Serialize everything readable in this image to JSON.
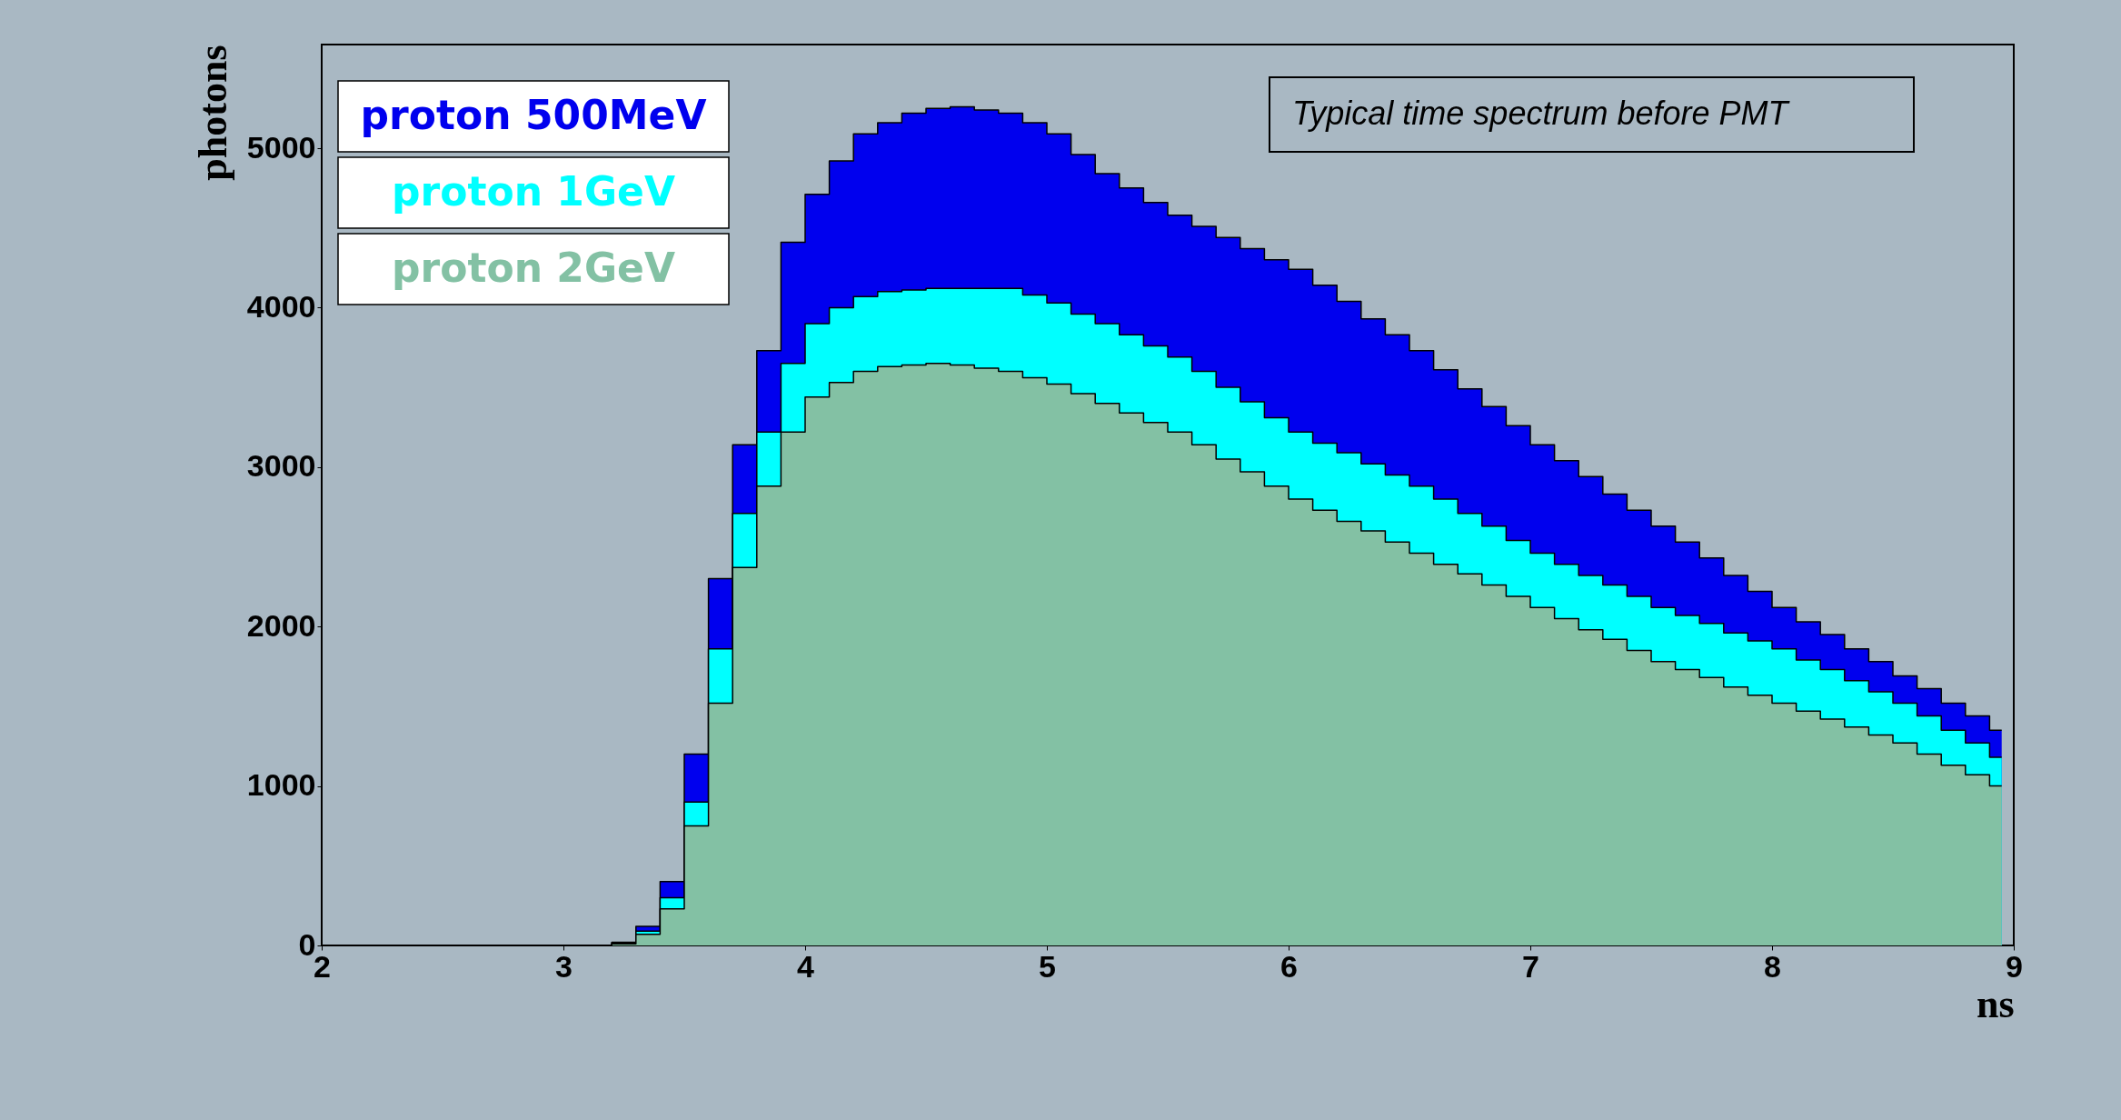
{
  "chart_data": {
    "type": "area",
    "title": null,
    "xlabel": "ns",
    "ylabel": "photons",
    "annotations": [
      "Typical time spectrum before PMT"
    ],
    "x": [
      2.05,
      2.15,
      2.25,
      2.35,
      2.45,
      2.55,
      2.65,
      2.75,
      2.85,
      2.95,
      3.05,
      3.15,
      3.25,
      3.35,
      3.45,
      3.55,
      3.65,
      3.75,
      3.85,
      3.95,
      4.05,
      4.15,
      4.25,
      4.35,
      4.45,
      4.55,
      4.65,
      4.75,
      4.85,
      4.95,
      5.05,
      5.15,
      5.25,
      5.35,
      5.45,
      5.55,
      5.65,
      5.75,
      5.85,
      5.95,
      6.05,
      6.15,
      6.25,
      6.35,
      6.45,
      6.55,
      6.65,
      6.75,
      6.85,
      6.95,
      7.05,
      7.15,
      7.25,
      7.35,
      7.45,
      7.55,
      7.65,
      7.75,
      7.85,
      7.95,
      8.05,
      8.15,
      8.25,
      8.35,
      8.45,
      8.55,
      8.65,
      8.75,
      8.85,
      8.95
    ],
    "series": [
      {
        "name": "proton 500MeV",
        "color": "#0000ee",
        "values": [
          0,
          0,
          0,
          0,
          0,
          0,
          0,
          0,
          0,
          0,
          0,
          0,
          20,
          120,
          400,
          1200,
          2300,
          3140,
          3730,
          4410,
          4710,
          4920,
          5090,
          5160,
          5220,
          5250,
          5260,
          5240,
          5220,
          5160,
          5090,
          4960,
          4840,
          4750,
          4660,
          4580,
          4510,
          4440,
          4370,
          4300,
          4240,
          4140,
          4040,
          3930,
          3830,
          3730,
          3610,
          3490,
          3380,
          3260,
          3140,
          3040,
          2940,
          2830,
          2730,
          2630,
          2530,
          2430,
          2320,
          2220,
          2120,
          2030,
          1950,
          1860,
          1780,
          1690,
          1610,
          1520,
          1440,
          1350
        ]
      },
      {
        "name": "proton 1GeV",
        "color": "#00ffff",
        "values": [
          0,
          0,
          0,
          0,
          0,
          0,
          0,
          0,
          0,
          0,
          0,
          0,
          15,
          90,
          300,
          900,
          1860,
          2710,
          3220,
          3650,
          3900,
          4000,
          4070,
          4100,
          4110,
          4120,
          4120,
          4120,
          4120,
          4080,
          4030,
          3960,
          3900,
          3830,
          3760,
          3690,
          3600,
          3500,
          3410,
          3310,
          3220,
          3150,
          3090,
          3020,
          2950,
          2880,
          2800,
          2710,
          2630,
          2540,
          2460,
          2390,
          2320,
          2260,
          2190,
          2120,
          2070,
          2020,
          1960,
          1910,
          1860,
          1790,
          1730,
          1660,
          1590,
          1520,
          1440,
          1350,
          1270,
          1180
        ]
      },
      {
        "name": "proton 2GeV",
        "color": "#83c1a4",
        "values": [
          0,
          0,
          0,
          0,
          0,
          0,
          0,
          0,
          0,
          0,
          0,
          0,
          10,
          70,
          230,
          750,
          1520,
          2370,
          2880,
          3220,
          3440,
          3530,
          3600,
          3630,
          3640,
          3650,
          3640,
          3620,
          3600,
          3560,
          3520,
          3460,
          3400,
          3340,
          3280,
          3220,
          3140,
          3050,
          2970,
          2880,
          2800,
          2730,
          2660,
          2600,
          2530,
          2460,
          2390,
          2330,
          2260,
          2190,
          2120,
          2050,
          1980,
          1920,
          1850,
          1780,
          1730,
          1680,
          1620,
          1570,
          1520,
          1470,
          1420,
          1370,
          1320,
          1270,
          1200,
          1130,
          1070,
          1000
        ]
      }
    ],
    "xlim": [
      2,
      9
    ],
    "xticks": [
      2,
      3,
      4,
      5,
      6,
      7,
      8,
      9
    ],
    "ylim": [
      0,
      5650
    ],
    "yticks": [
      0,
      1000,
      2000,
      3000,
      4000,
      5000
    ],
    "grid": false,
    "legend": "top left",
    "line_style": "solid"
  }
}
